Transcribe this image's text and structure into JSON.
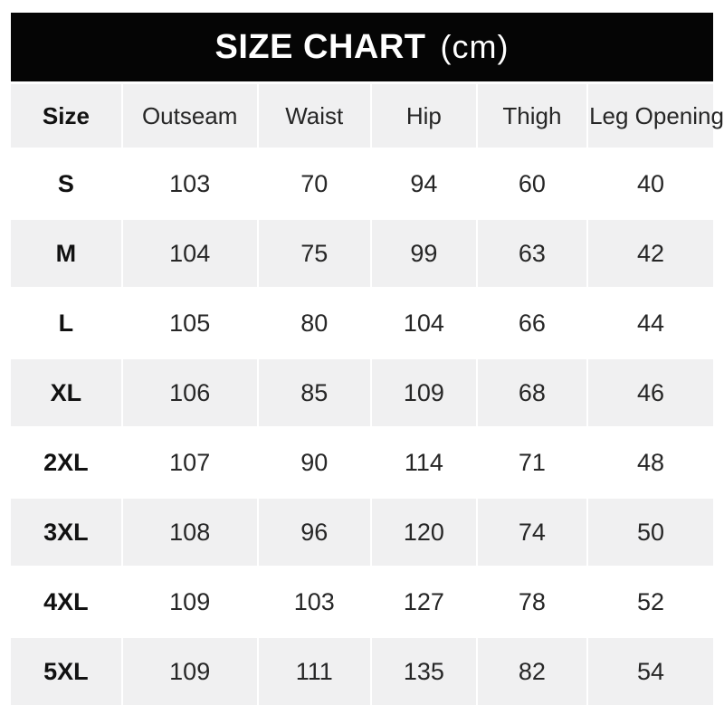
{
  "header": {
    "title": "SIZE CHART",
    "unit_label": "(cm)"
  },
  "colors": {
    "title_bar_bg": "#050505",
    "title_text": "#ffffff",
    "alt_row_bg": "#f0f0f1",
    "row_bg": "#ffffff",
    "cell_text": "#262626"
  },
  "chart_data": {
    "type": "table",
    "title": "SIZE CHART (cm)",
    "unit": "cm",
    "columns": [
      "Size",
      "Outseam",
      "Waist",
      "Hip",
      "Thigh",
      "Leg Opening"
    ],
    "rows": [
      [
        "S",
        "103",
        "70",
        "94",
        "60",
        "40"
      ],
      [
        "M",
        "104",
        "75",
        "99",
        "63",
        "42"
      ],
      [
        "L",
        "105",
        "80",
        "104",
        "66",
        "44"
      ],
      [
        "XL",
        "106",
        "85",
        "109",
        "68",
        "46"
      ],
      [
        "2XL",
        "107",
        "90",
        "114",
        "71",
        "48"
      ],
      [
        "3XL",
        "108",
        "96",
        "120",
        "74",
        "50"
      ],
      [
        "4XL",
        "109",
        "103",
        "127",
        "78",
        "52"
      ],
      [
        "5XL",
        "109",
        "111",
        "135",
        "82",
        "54"
      ]
    ],
    "layout": {
      "alternating_rows": true,
      "gray_rows": [
        "header",
        "M",
        "XL",
        "3XL",
        "5XL"
      ],
      "grid": "white 2-3px gutters between cells"
    }
  }
}
